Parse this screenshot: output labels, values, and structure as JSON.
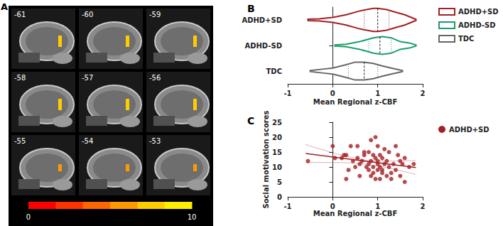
{
  "brain_slices": {
    "title": "A",
    "labels": [
      -61,
      -60,
      -59,
      -58,
      -57,
      -56,
      -55,
      -54,
      -53
    ],
    "colorbar": {
      "range": [
        0,
        10
      ],
      "ticks": [
        0,
        10
      ],
      "colors": [
        "#ff0000",
        "#ff3300",
        "#ff6600",
        "#ff9900",
        "#ffcc00",
        "#ffee00"
      ]
    }
  },
  "chart_data": [
    {
      "type": "violin",
      "title": "B",
      "xlabel": "Mean Regional z-CBF",
      "xlim": [
        -1,
        2
      ],
      "xticks": [
        -1,
        0,
        1,
        2
      ],
      "legend": "right",
      "categories": [
        "ADHD+SD",
        "ADHD-SD",
        "TDC"
      ],
      "series": [
        {
          "name": "ADHD+SD",
          "color": "#a31f24",
          "x": [
            -0.55,
            -0.3,
            0,
            0.3,
            0.6,
            0.9,
            1.0,
            1.2,
            1.4,
            1.6,
            1.85
          ],
          "density": [
            0.03,
            0.04,
            0.1,
            0.2,
            0.35,
            0.45,
            0.45,
            0.4,
            0.3,
            0.2,
            0.02
          ],
          "median": 1.0,
          "quartiles": [
            0.7,
            1.25
          ]
        },
        {
          "name": "ADHD-SD",
          "color": "#1a9e6a",
          "x": [
            0.05,
            0.3,
            0.6,
            0.9,
            1.1,
            1.3,
            1.5,
            1.7,
            1.85
          ],
          "density": [
            0.02,
            0.05,
            0.15,
            0.3,
            0.35,
            0.3,
            0.15,
            0.1,
            0.02
          ],
          "median": 1.05,
          "quartiles": [
            0.8,
            1.3
          ]
        },
        {
          "name": "TDC",
          "color": "#666666",
          "x": [
            -0.5,
            -0.2,
            0,
            0.3,
            0.5,
            0.7,
            0.9,
            1.1,
            1.3,
            1.55
          ],
          "density": [
            0.02,
            0.08,
            0.12,
            0.25,
            0.35,
            0.35,
            0.3,
            0.2,
            0.12,
            0.02
          ],
          "median": 0.7,
          "quartiles": [
            0.35,
            1.0
          ]
        }
      ]
    },
    {
      "type": "scatter",
      "title": "C",
      "xlabel": "Mean Regional z-CBF",
      "ylabel": "Social motivation scores",
      "xlim": [
        -1,
        2
      ],
      "xticks": [
        -1,
        0,
        1,
        2
      ],
      "ylim": [
        0,
        25
      ],
      "yticks": [
        0,
        5,
        10,
        15,
        20,
        25
      ],
      "legend": "right",
      "series": [
        {
          "name": "ADHD+SD",
          "color": "#a31f24",
          "marker": "circle",
          "x": [
            -0.55,
            0,
            0.05,
            0.2,
            0.25,
            0.3,
            0.3,
            0.35,
            0.4,
            0.45,
            0.5,
            0.55,
            0.55,
            0.6,
            0.6,
            0.65,
            0.7,
            0.7,
            0.75,
            0.8,
            0.8,
            0.8,
            0.85,
            0.85,
            0.85,
            0.9,
            0.9,
            0.9,
            0.95,
            0.95,
            0.95,
            1.0,
            1.0,
            1.0,
            1.0,
            1.05,
            1.05,
            1.05,
            1.1,
            1.1,
            1.1,
            1.15,
            1.15,
            1.2,
            1.2,
            1.25,
            1.25,
            1.3,
            1.3,
            1.35,
            1.4,
            1.4,
            1.45,
            1.5,
            1.5,
            1.55,
            1.6,
            1.6,
            1.7,
            1.8
          ],
          "y": [
            12,
            17,
            13,
            13,
            14,
            14,
            6,
            9,
            17,
            12,
            10,
            13,
            17,
            11,
            7,
            12,
            14,
            15,
            10,
            9,
            11,
            15,
            19,
            12,
            7,
            8,
            10,
            14,
            20,
            13,
            6,
            11,
            9,
            12,
            17,
            10,
            14,
            6,
            13,
            9,
            8,
            11,
            16,
            12,
            7,
            10,
            15,
            8,
            6,
            11,
            17,
            9,
            14,
            7,
            12,
            11,
            5,
            13,
            10,
            11
          ]
        }
      ],
      "fit": {
        "x": [
          -0.6,
          1.85
        ],
        "y": [
          14.5,
          9.8
        ]
      },
      "band": {
        "x": [
          -0.6,
          0,
          0.5,
          1,
          1.5,
          1.85
        ],
        "upper": [
          17.5,
          14.8,
          13.0,
          12.0,
          12.0,
          12.2
        ],
        "lower": [
          11.5,
          11.5,
          11.2,
          10.3,
          8.8,
          7.5
        ]
      }
    }
  ]
}
